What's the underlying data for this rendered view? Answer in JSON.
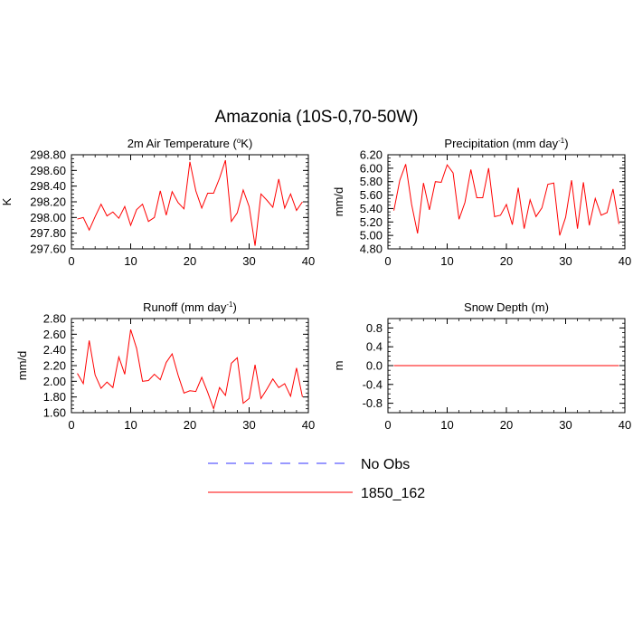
{
  "page_title": "Amazonia (10S-0,70-50W)",
  "legend": {
    "entries": [
      {
        "label": "No Obs",
        "color": "#3333ff",
        "style": "dashed"
      },
      {
        "label": "1850_162",
        "color": "#ff0000",
        "style": "solid"
      }
    ]
  },
  "chart_data": [
    {
      "type": "line",
      "title": "2m Air Temperature (°K)",
      "title_parts": {
        "pre": "2m Air Temperature (",
        "sup": "o",
        "post": "K)"
      },
      "ylabel": "K",
      "xlabel": "",
      "xlim": [
        0,
        40
      ],
      "ylim": [
        297.6,
        298.8
      ],
      "xticks": [
        0,
        10,
        20,
        30,
        40
      ],
      "yticks": [
        297.6,
        297.8,
        298.0,
        298.2,
        298.4,
        298.6,
        298.8
      ],
      "ytick_labels": [
        "297.60",
        "297.80",
        "298.00",
        "298.20",
        "298.40",
        "298.60",
        "298.80"
      ],
      "series": [
        {
          "name": "1850_162",
          "color": "#ff0000",
          "x": [
            1,
            2,
            3,
            4,
            5,
            6,
            7,
            8,
            9,
            10,
            11,
            12,
            13,
            14,
            15,
            16,
            17,
            18,
            19,
            20,
            21,
            22,
            23,
            24,
            25,
            26,
            27,
            28,
            29,
            30,
            31,
            32,
            33,
            34,
            35,
            36,
            37,
            38,
            39
          ],
          "y": [
            297.98,
            298.0,
            297.84,
            298.01,
            298.17,
            298.02,
            298.07,
            297.99,
            298.14,
            297.9,
            298.1,
            298.17,
            297.95,
            298.0,
            298.34,
            298.03,
            298.33,
            298.19,
            298.11,
            298.71,
            298.34,
            298.12,
            298.31,
            298.31,
            298.5,
            298.73,
            297.95,
            298.06,
            298.35,
            298.14,
            297.64,
            298.3,
            298.22,
            298.13,
            298.49,
            298.12,
            298.3,
            298.09,
            298.2
          ]
        }
      ]
    },
    {
      "type": "line",
      "title": "Precipitation (mm day⁻¹)",
      "title_parts": {
        "pre": "Precipitation (mm day",
        "sup": "-1",
        "post": ")"
      },
      "ylabel": "mm/d",
      "xlabel": "",
      "xlim": [
        0,
        40
      ],
      "ylim": [
        4.8,
        6.2
      ],
      "xticks": [
        0,
        10,
        20,
        30,
        40
      ],
      "yticks": [
        4.8,
        5.0,
        5.2,
        5.4,
        5.6,
        5.8,
        6.0,
        6.2
      ],
      "ytick_labels": [
        "4.80",
        "5.00",
        "5.20",
        "5.40",
        "5.60",
        "5.80",
        "6.00",
        "6.20"
      ],
      "series": [
        {
          "name": "1850_162",
          "color": "#ff0000",
          "x": [
            1,
            2,
            3,
            4,
            5,
            6,
            7,
            8,
            9,
            10,
            11,
            12,
            13,
            14,
            15,
            16,
            17,
            18,
            19,
            20,
            21,
            22,
            23,
            24,
            25,
            26,
            27,
            28,
            29,
            30,
            31,
            32,
            33,
            34,
            35,
            36,
            37,
            38,
            39
          ],
          "y": [
            5.37,
            5.82,
            6.06,
            5.46,
            5.03,
            5.78,
            5.38,
            5.8,
            5.79,
            6.05,
            5.93,
            5.24,
            5.49,
            5.98,
            5.56,
            5.56,
            6.0,
            5.28,
            5.3,
            5.46,
            5.16,
            5.71,
            5.1,
            5.53,
            5.28,
            5.41,
            5.76,
            5.78,
            5.0,
            5.27,
            5.82,
            5.1,
            5.79,
            5.15,
            5.55,
            5.3,
            5.34,
            5.69,
            5.17
          ]
        }
      ]
    },
    {
      "type": "line",
      "title": "Runoff (mm day⁻¹)",
      "title_parts": {
        "pre": "Runoff (mm day",
        "sup": "-1",
        "post": ")"
      },
      "ylabel": "mm/d",
      "xlabel": "",
      "xlim": [
        0,
        40
      ],
      "ylim": [
        1.6,
        2.8
      ],
      "xticks": [
        0,
        10,
        20,
        30,
        40
      ],
      "yticks": [
        1.6,
        1.8,
        2.0,
        2.2,
        2.4,
        2.6,
        2.8
      ],
      "ytick_labels": [
        "1.60",
        "1.80",
        "2.00",
        "2.20",
        "2.40",
        "2.60",
        "2.80"
      ],
      "series": [
        {
          "name": "1850_162",
          "color": "#ff0000",
          "x": [
            1,
            2,
            3,
            4,
            5,
            6,
            7,
            8,
            9,
            10,
            11,
            12,
            13,
            14,
            15,
            16,
            17,
            18,
            19,
            20,
            21,
            22,
            23,
            24,
            25,
            26,
            27,
            28,
            29,
            30,
            31,
            32,
            33,
            34,
            35,
            36,
            37,
            38,
            39
          ],
          "y": [
            2.1,
            1.97,
            2.52,
            2.08,
            1.91,
            1.99,
            1.92,
            2.31,
            2.09,
            2.66,
            2.42,
            2.0,
            2.01,
            2.09,
            2.02,
            2.24,
            2.35,
            2.08,
            1.85,
            1.88,
            1.87,
            2.05,
            1.86,
            1.65,
            1.92,
            1.82,
            2.23,
            2.3,
            1.72,
            1.78,
            2.21,
            1.78,
            1.9,
            2.03,
            1.92,
            1.97,
            1.81,
            2.17,
            1.8
          ]
        }
      ]
    },
    {
      "type": "line",
      "title": "Snow Depth (m)",
      "title_parts": {
        "pre": "Snow Depth (m)",
        "sup": "",
        "post": ""
      },
      "ylabel": "m",
      "xlabel": "",
      "xlim": [
        0,
        40
      ],
      "ylim": [
        -1.0,
        1.0
      ],
      "xticks": [
        0,
        10,
        20,
        30,
        40
      ],
      "yticks": [
        -0.8,
        -0.4,
        0.0,
        0.4,
        0.8
      ],
      "ytick_labels": [
        "-0.8",
        "-0.4",
        "0.0",
        "0.4",
        "0.8"
      ],
      "series": [
        {
          "name": "1850_162",
          "color": "#ff0000",
          "x": [
            1,
            39
          ],
          "y": [
            0.0,
            0.0
          ]
        }
      ]
    }
  ]
}
